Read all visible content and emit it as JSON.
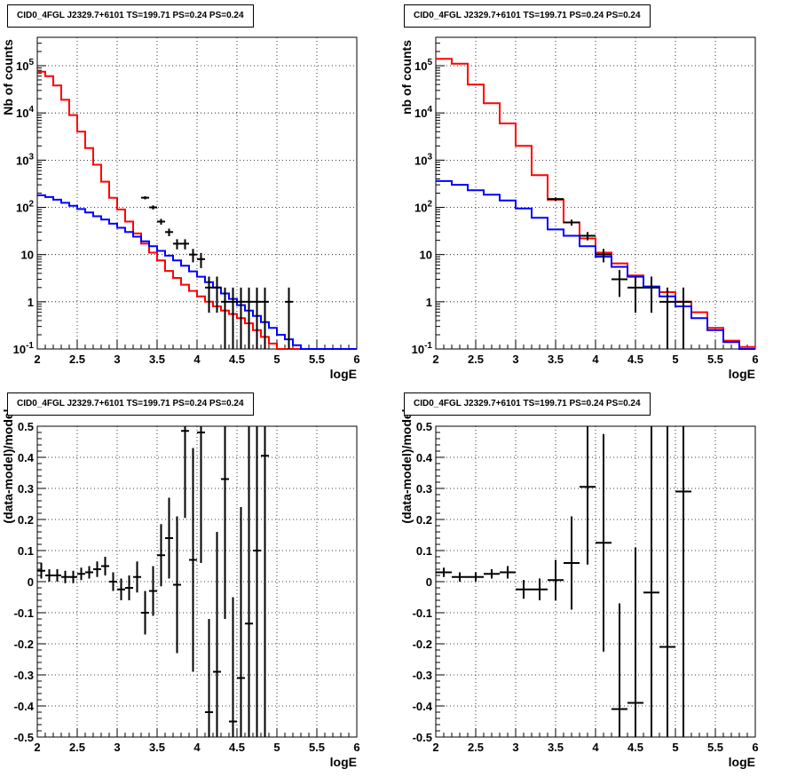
{
  "colors": {
    "data": "#000000",
    "total_model": "#ff0000",
    "source_model": "#0000ff",
    "grid": "#000000"
  },
  "chart_data": [
    {
      "type": "line",
      "title": "CID0_4FGL J2329.7+6101 TS=199.71 PS=0.24 PS=0.24",
      "xlabel": "logE",
      "ylabel": "Nb of counts",
      "xlim": [
        2,
        6
      ],
      "ylim": [
        0.1,
        400000
      ],
      "log_y": true,
      "grid": true,
      "x_ticks": [
        "2",
        "2.5",
        "3",
        "3.5",
        "4",
        "4.5",
        "5",
        "5.5",
        "6"
      ],
      "y_ticks": [
        "10^-1",
        "1",
        "10",
        "10^2",
        "10^3",
        "10^4",
        "10^5"
      ],
      "bin_edges_start": 2.0,
      "bin_width": 0.1,
      "series": [
        {
          "style": "step",
          "color": "#ff0000",
          "values": [
            75000,
            60000,
            38000,
            19000,
            9000,
            4000,
            1800,
            800,
            350,
            160,
            90,
            50,
            28,
            17,
            11,
            7.5,
            4.5,
            3.2,
            2.3,
            1.7,
            1.3,
            1.0,
            0.8,
            0.65,
            0.55,
            0.45,
            0.35,
            0.25,
            0.18,
            0.13,
            0.1,
            0.1,
            0.1,
            0.1,
            0.1,
            0.1,
            0.1,
            0.1,
            0.1,
            0.1
          ]
        },
        {
          "style": "step",
          "color": "#0000ff",
          "values": [
            180,
            165,
            145,
            125,
            108,
            92,
            78,
            65,
            55,
            45,
            37,
            30,
            24,
            19,
            15,
            12,
            9.5,
            7.5,
            5.8,
            4.4,
            3.4,
            2.6,
            2.0,
            1.5,
            1.15,
            0.85,
            0.65,
            0.5,
            0.37,
            0.28,
            0.2,
            0.16,
            0.12,
            0.1,
            0.1,
            0.1,
            0.1,
            0.1,
            0.1,
            0.1
          ]
        },
        {
          "style": "errorbars",
          "color": "#000000",
          "x": [
            3.35,
            3.45,
            3.55,
            3.65,
            3.75,
            3.85,
            3.95,
            4.05,
            4.15,
            4.25,
            4.35,
            4.45,
            4.55,
            4.65,
            4.75,
            4.85,
            5.15
          ],
          "y": [
            160,
            100,
            50,
            30,
            17,
            17,
            10,
            8,
            2,
            2,
            1,
            1,
            1,
            1,
            1,
            1,
            1
          ]
        }
      ]
    },
    {
      "type": "line",
      "title": "CID0_4FGL J2329.7+6101 TS=199.71 PS=0.24 PS=0.24",
      "xlabel": "logE",
      "ylabel": "nb of counts",
      "xlim": [
        2,
        6
      ],
      "ylim": [
        0.1,
        400000
      ],
      "log_y": true,
      "grid": true,
      "x_ticks": [
        "2",
        "2.5",
        "3",
        "3.5",
        "4",
        "4.5",
        "5",
        "5.5",
        "6"
      ],
      "y_ticks": [
        "10^-1",
        "1",
        "10",
        "10^2",
        "10^3",
        "10^4",
        "10^5"
      ],
      "bin_edges_start": 2.0,
      "bin_width": 0.2,
      "series": [
        {
          "style": "step",
          "color": "#ff0000",
          "values": [
            140000,
            110000,
            40000,
            16000,
            6000,
            2000,
            480,
            145,
            48,
            22,
            11,
            6.5,
            3.6,
            2.1,
            1.6,
            1.0,
            0.6,
            0.28,
            0.15,
            0.11
          ]
        },
        {
          "style": "step",
          "color": "#0000ff",
          "values": [
            360,
            300,
            230,
            185,
            140,
            95,
            60,
            34,
            25,
            15,
            9,
            5.5,
            3.4,
            2.1,
            1.3,
            0.8,
            0.45,
            0.25,
            0.14,
            0.1
          ]
        },
        {
          "style": "errorbars",
          "color": "#000000",
          "x": [
            3.5,
            3.7,
            3.9,
            4.1,
            4.3,
            4.5,
            4.7,
            4.9,
            5.1
          ],
          "y": [
            150,
            48,
            25,
            10,
            3,
            2,
            2,
            1,
            1
          ]
        }
      ]
    },
    {
      "type": "scatter",
      "title": "CID0_4FGL J2329.7+6101 TS=199.71 PS=0.24 PS=0.24",
      "xlabel": "logE",
      "ylabel": "(data-model)/model",
      "xlim": [
        2,
        6
      ],
      "ylim": [
        -0.5,
        0.5
      ],
      "grid": true,
      "x_ticks": [
        "2",
        "2.5",
        "3",
        "3.5",
        "4",
        "4.5",
        "5",
        "5.5",
        "6"
      ],
      "y_ticks": [
        "-0.5",
        "-0.4",
        "-0.3",
        "-0.2",
        "-0.1",
        "0",
        "0.1",
        "0.2",
        "0.3",
        "0.4",
        "0.5"
      ],
      "x": [
        2.05,
        2.15,
        2.25,
        2.35,
        2.45,
        2.55,
        2.65,
        2.75,
        2.85,
        2.95,
        3.05,
        3.15,
        3.25,
        3.35,
        3.45,
        3.55,
        3.65,
        3.75,
        3.85,
        3.95,
        4.05,
        4.15,
        4.25,
        4.35,
        4.45,
        4.55,
        4.65,
        4.75,
        4.85
      ],
      "y": [
        0.035,
        0.02,
        0.02,
        0.015,
        0.015,
        0.025,
        0.03,
        0.04,
        0.05,
        0.0,
        -0.025,
        -0.02,
        0.015,
        -0.1,
        -0.03,
        0.085,
        0.14,
        -0.01,
        0.485,
        0.07,
        0.48,
        -0.42,
        -0.29,
        0.33,
        -0.45,
        -0.31,
        -0.135,
        0.1,
        0.405
      ],
      "err": [
        0.025,
        0.02,
        0.02,
        0.02,
        0.02,
        0.02,
        0.02,
        0.025,
        0.03,
        0.03,
        0.035,
        0.04,
        0.05,
        0.07,
        0.08,
        0.1,
        0.13,
        0.22,
        0.28,
        0.36,
        0.42,
        0.3,
        0.45,
        0.45,
        0.4,
        0.55,
        0.75,
        0.9,
        1.0
      ]
    },
    {
      "type": "scatter",
      "title": "CID0_4FGL J2329.7+6101 TS=199.71 PS=0.24 PS=0.24",
      "xlabel": "logE",
      "ylabel": "(data-model)/model",
      "xlim": [
        2,
        6
      ],
      "ylim": [
        -0.5,
        0.5
      ],
      "grid": true,
      "x_ticks": [
        "2",
        "2.5",
        "3",
        "3.5",
        "4",
        "4.5",
        "5",
        "5.5",
        "6"
      ],
      "y_ticks": [
        "-0.5",
        "-0.4",
        "-0.3",
        "-0.2",
        "-0.1",
        "0",
        "0.1",
        "0.2",
        "0.3",
        "0.4",
        "0.5"
      ],
      "x": [
        2.1,
        2.3,
        2.5,
        2.7,
        2.9,
        3.1,
        3.3,
        3.5,
        3.7,
        3.9,
        4.1,
        4.3,
        4.5,
        4.7,
        4.9,
        5.1
      ],
      "y": [
        0.03,
        0.015,
        0.015,
        0.025,
        0.03,
        -0.025,
        -0.025,
        0.005,
        0.06,
        0.305,
        0.125,
        -0.41,
        -0.39,
        -0.035,
        -0.21,
        0.29
      ],
      "err": [
        0.015,
        0.015,
        0.015,
        0.015,
        0.02,
        0.03,
        0.035,
        0.065,
        0.15,
        0.25,
        0.35,
        0.34,
        0.5,
        0.6,
        0.9,
        0.9
      ]
    }
  ]
}
